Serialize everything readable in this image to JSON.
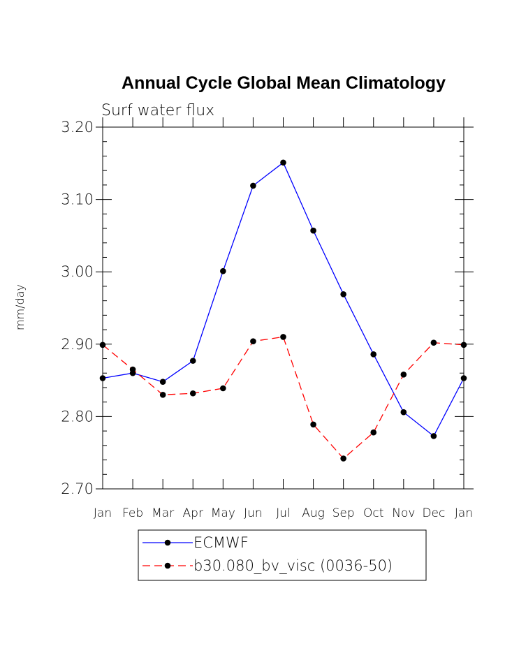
{
  "chart_data": {
    "type": "line",
    "title": "Annual Cycle Global Mean Climatology",
    "subtitle": "Surf water flux",
    "xlabel": "",
    "ylabel": "mm/day",
    "categories": [
      "Jan",
      "Feb",
      "Mar",
      "Apr",
      "May",
      "Jun",
      "Jul",
      "Aug",
      "Sep",
      "Oct",
      "Nov",
      "Dec",
      "Jan"
    ],
    "ylim": [
      2.7,
      3.2
    ],
    "yticks": [
      "2.70",
      "2.80",
      "2.90",
      "3.00",
      "3.10",
      "3.20"
    ],
    "grid": false,
    "legend_position": "bottom-center",
    "series": [
      {
        "name": "ECMWF",
        "color": "#0000ff",
        "dash": "solid",
        "marker": "filled-circle",
        "values": [
          2.853,
          2.86,
          2.848,
          2.877,
          3.001,
          3.119,
          3.151,
          3.057,
          2.969,
          2.886,
          2.806,
          2.773,
          2.853
        ]
      },
      {
        "name": "b30.080_bv_visc (0036-50)",
        "color": "#ff0000",
        "dash": "dashed",
        "marker": "filled-circle",
        "values": [
          2.899,
          2.865,
          2.83,
          2.832,
          2.839,
          2.904,
          2.91,
          2.789,
          2.742,
          2.778,
          2.858,
          2.902,
          2.899
        ]
      }
    ]
  }
}
